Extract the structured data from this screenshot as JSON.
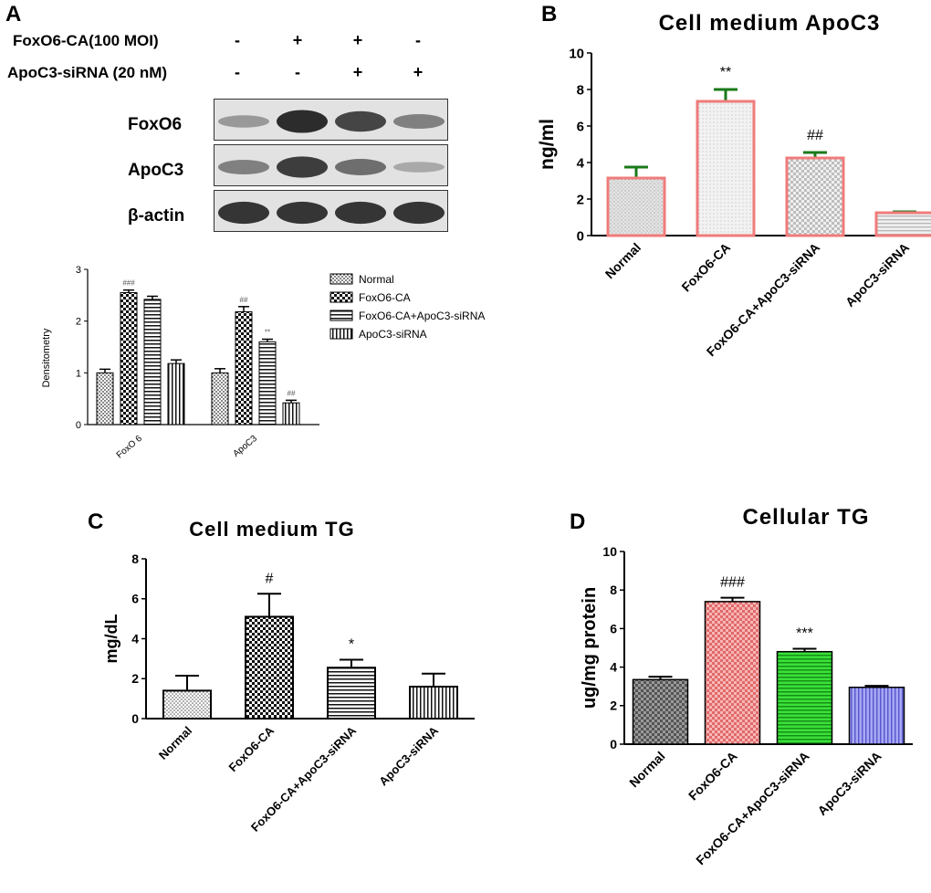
{
  "panel_letters": {
    "a": "A",
    "b": "B",
    "c": "C",
    "d": "D"
  },
  "conditions": {
    "rows": [
      {
        "label": "FoxO6-CA(100 MOI)",
        "signs": [
          "-",
          "+",
          "+",
          "-"
        ]
      },
      {
        "label": "ApoC3-siRNA (20 nM)",
        "signs": [
          "-",
          "-",
          "+",
          "+"
        ]
      }
    ]
  },
  "western_blot": {
    "rows": [
      {
        "label": "FoxO6",
        "intensities": [
          0.3,
          0.95,
          0.8,
          0.45
        ]
      },
      {
        "label": "ApoC3",
        "intensities": [
          0.45,
          0.85,
          0.55,
          0.2
        ]
      },
      {
        "label": "β-actin",
        "intensities": [
          0.9,
          0.9,
          0.9,
          0.9
        ]
      }
    ]
  },
  "chart_data": [
    {
      "id": "densitometry",
      "type": "bar",
      "title": "",
      "xlabel": "",
      "ylabel": "Densitometry",
      "ylim": [
        0,
        3
      ],
      "yticks": [
        0,
        1,
        2,
        3
      ],
      "categories": [
        "FoxO 6",
        "ApoC3"
      ],
      "series": [
        {
          "name": "Normal",
          "values": [
            1.0,
            1.0
          ],
          "errors": [
            0.07,
            0.08
          ],
          "pattern": "dots"
        },
        {
          "name": "FoxO6-CA",
          "values": [
            2.55,
            2.18
          ],
          "errors": [
            0.05,
            0.1
          ],
          "pattern": "checker"
        },
        {
          "name": "FoxO6-CA+ApoC3-siRNA",
          "values": [
            2.42,
            1.6
          ],
          "errors": [
            0.06,
            0.05
          ],
          "pattern": "hlines"
        },
        {
          "name": "ApoC3-siRNA",
          "values": [
            1.18,
            0.42
          ],
          "errors": [
            0.07,
            0.05
          ],
          "pattern": "vlines"
        }
      ],
      "annotations": [
        {
          "category": 0,
          "series": 1,
          "text": "###"
        },
        {
          "category": 1,
          "series": 1,
          "text": "##"
        },
        {
          "category": 1,
          "series": 2,
          "text": "**"
        },
        {
          "category": 1,
          "series": 3,
          "text": "##"
        }
      ],
      "legend": "right",
      "grid": false
    },
    {
      "id": "cell_medium_apoc3",
      "type": "bar",
      "title": "Cell medium ApoC3",
      "xlabel": "",
      "ylabel": "ng/ml",
      "ylim": [
        0,
        10
      ],
      "yticks": [
        0,
        2,
        4,
        6,
        8,
        10
      ],
      "categories": [
        "Normal",
        "FoxO6-CA",
        "FoxO6-CA+ApoC3-siRNA",
        "ApoC3-siRNA"
      ],
      "values": [
        3.15,
        7.35,
        4.25,
        1.25
      ],
      "errors": [
        0.6,
        0.65,
        0.3,
        0.05
      ],
      "annotations": [
        "",
        "**",
        "##",
        ""
      ],
      "colors": {
        "bar_edge": "#f07b7b",
        "error_bar": "#1a7a1a",
        "fill": "#dcdcdc"
      },
      "grid": false
    },
    {
      "id": "cell_medium_tg",
      "type": "bar",
      "title": "Cell medium TG",
      "xlabel": "",
      "ylabel": "mg/dL",
      "ylim": [
        0,
        8
      ],
      "yticks": [
        0,
        2,
        4,
        6,
        8
      ],
      "categories": [
        "Normal",
        "FoxO6-CA",
        "FoxO6-CA+ApoC3-siRNA",
        "ApoC3-siRNA"
      ],
      "values": [
        1.4,
        5.1,
        2.55,
        1.6
      ],
      "errors": [
        0.75,
        1.15,
        0.4,
        0.65
      ],
      "annotations": [
        "",
        "#",
        "*",
        ""
      ],
      "grid": false
    },
    {
      "id": "cellular_tg",
      "type": "bar",
      "title": "Cellular TG",
      "xlabel": "",
      "ylabel": "ug/mg protein",
      "ylim": [
        0,
        10
      ],
      "yticks": [
        0,
        2,
        4,
        6,
        8,
        10
      ],
      "categories": [
        "Normal",
        "FoxO6-CA",
        "FoxO6-CA+ApoC3-siRNA",
        "ApoC3-siRNA"
      ],
      "values": [
        3.35,
        7.4,
        4.8,
        2.95
      ],
      "errors": [
        0.15,
        0.2,
        0.15,
        0.08
      ],
      "annotations": [
        "",
        "###",
        "***",
        ""
      ],
      "colors": {
        "bars": [
          "#9a9a9a",
          "#f48a8a",
          "#27d027",
          "#8f8fe8"
        ]
      },
      "grid": false
    }
  ]
}
